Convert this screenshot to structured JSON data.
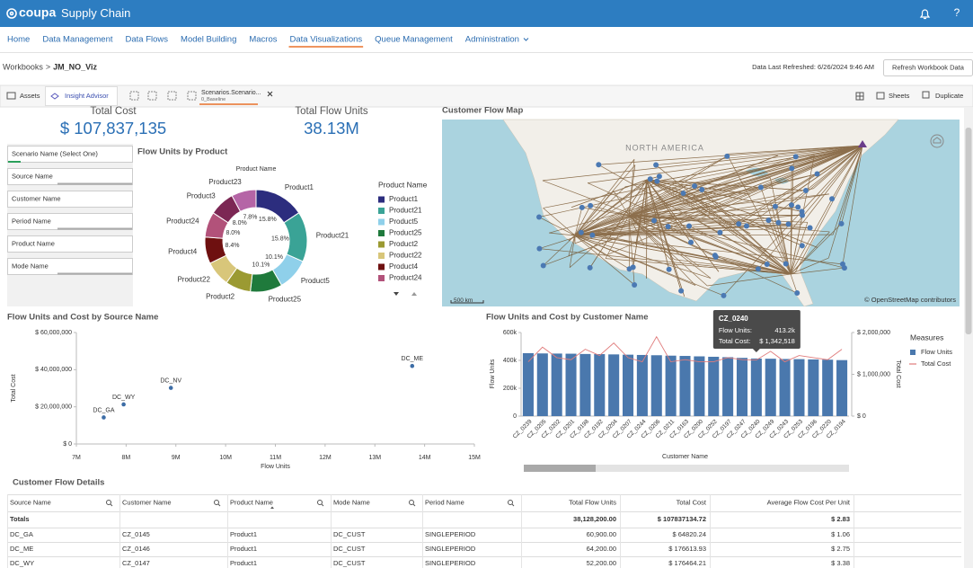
{
  "header": {
    "brand": "coupa",
    "app": "Supply Chain",
    "help": "?"
  },
  "nav": {
    "items": [
      "Home",
      "Data Management",
      "Data Flows",
      "Model Building",
      "Macros",
      "Data Visualizations",
      "Queue Management",
      "Administration"
    ],
    "active": 5
  },
  "breadcrumb": {
    "root": "Workbooks",
    "separator": ">",
    "current": "JM_NO_Viz"
  },
  "refresh": {
    "label": "Data Last Refreshed: 6/26/2024 9:46 AM",
    "button": "Refresh Workbook Data"
  },
  "toolbar": {
    "assets": "Assets",
    "insight": "Insight Advisor",
    "tab_title": "Scenarios.Scenario...",
    "tab_subtitle": "0_Baseline",
    "sheets": "Sheets",
    "duplicate": "Duplicate"
  },
  "kpis": [
    {
      "label": "Total Cost",
      "value": "$ 107,837,135"
    },
    {
      "label": "Total Flow Units",
      "value": "38.13M"
    }
  ],
  "filters": [
    "Scenario Name (Select One)",
    "Source Name",
    "Customer Name",
    "Period Name",
    "Product Name",
    "Mode Name"
  ],
  "donut": {
    "type": "pie",
    "title": "Flow Units by Product",
    "dimension": "Product Name",
    "categories": [
      "Product1",
      "Product21",
      "Product5",
      "Product25",
      "Product2",
      "Product22",
      "Product4",
      "Product24",
      "Product3",
      "Product23"
    ],
    "values": [
      15.8,
      15.8,
      10.1,
      10.1,
      8.0,
      8.0,
      8.4,
      8.0,
      8.0,
      7.8
    ],
    "value_labels": [
      "15.8%",
      "15.8%",
      "10.1%",
      "10.1%",
      null,
      null,
      "8.4%",
      "8.0%",
      "8.0%",
      "7.8%"
    ],
    "colors": [
      "#2c2d7e",
      "#3aa396",
      "#8fd0ea",
      "#1f7a3c",
      "#9b9a32",
      "#d8c67a",
      "#6e1010",
      "#b2527a",
      "#7c2754",
      "#b565a6"
    ],
    "legend_title": "Product Name"
  },
  "map": {
    "title": "Customer Flow Map",
    "region_label": "NORTH AMERICA",
    "scale_label": "500 km",
    "attribution": "© OpenStreetMap contributors"
  },
  "scatter": {
    "type": "scatter",
    "title": "Flow Units and Cost by Source Name",
    "x_label": "Flow Units",
    "y_label": "Total Cost",
    "labels": [
      "DC_GA",
      "DC_WY",
      "DC_NV",
      "DC_ME"
    ],
    "x": [
      7550000,
      7950000,
      8900000,
      13750000
    ],
    "values": [
      14300000,
      21300000,
      30200000,
      42000000
    ],
    "color": "#3d6da6",
    "xlim": [
      7000000,
      15000000
    ],
    "xticks": [
      {
        "value": 7000000,
        "label": "7M"
      },
      {
        "value": 8000000,
        "label": "8M"
      },
      {
        "value": 9000000,
        "label": "9M"
      },
      {
        "value": 10000000,
        "label": "10M"
      },
      {
        "value": 11000000,
        "label": "11M"
      },
      {
        "value": 12000000,
        "label": "12M"
      },
      {
        "value": 13000000,
        "label": "13M"
      },
      {
        "value": 14000000,
        "label": "14M"
      },
      {
        "value": 15000000,
        "label": "15M"
      }
    ],
    "ylim": [
      0,
      60000000
    ],
    "yticks": [
      {
        "value": 0,
        "label": "$ 0"
      },
      {
        "value": 20000000,
        "label": "$ 20,000,000"
      },
      {
        "value": 40000000,
        "label": "$ 40,000,000"
      },
      {
        "value": 60000000,
        "label": "$ 60,000,000"
      }
    ]
  },
  "combo": {
    "type": "bar-line",
    "title": "Flow Units and Cost by Customer Name",
    "x_label": "Customer Name",
    "y_label": "Flow Units",
    "y2_label": "Total Cost",
    "legend_title": "Measures",
    "categories": [
      "CZ_0239",
      "CZ_0205",
      "CZ_0202",
      "CZ_0201",
      "CZ_0198",
      "CZ_0192",
      "CZ_0204",
      "CZ_0207",
      "CZ_0244",
      "CZ_0206",
      "CZ_0211",
      "CZ_0163",
      "CZ_0200",
      "CZ_0252",
      "CZ_0197",
      "CZ_0247",
      "CZ_0240",
      "CZ_0249",
      "CZ_0243",
      "CZ_0253",
      "CZ_0196",
      "CZ_0220",
      "CZ_0194"
    ],
    "series": [
      {
        "name": "Flow Units",
        "color": "#4a78ad",
        "values": [
          452000,
          450000,
          449000,
          448000,
          446000,
          445000,
          443000,
          441000,
          439000,
          437000,
          434000,
          432000,
          429000,
          426000,
          423000,
          418000,
          413200,
          412000,
          410000,
          409000,
          407000,
          405000,
          402000
        ]
      },
      {
        "name": "Total Cost",
        "color": "#e07c7c",
        "axis": "y2",
        "values": [
          1300000,
          1650000,
          1400000,
          1350000,
          1600000,
          1450000,
          1750000,
          1400000,
          1300000,
          1900000,
          1300000,
          1350000,
          1300000,
          1300000,
          1400000,
          1350000,
          1342518,
          1550000,
          1300000,
          1450000,
          1400000,
          1350000,
          1600000
        ]
      }
    ],
    "ylim": [
      0,
      600000
    ],
    "yticks": [
      0,
      {
        "value": 200000,
        "label": "200k"
      },
      {
        "value": 400000,
        "label": "400k"
      },
      {
        "value": 600000,
        "label": "600k"
      }
    ],
    "y2lim": [
      0,
      2000000
    ],
    "y2ticks": [
      {
        "value": 0,
        "label": "$ 0"
      },
      {
        "value": 1000000,
        "label": "$ 1,000,000"
      },
      {
        "value": 2000000,
        "label": "$ 2,000,000"
      }
    ],
    "tooltip": {
      "category": "CZ_0240",
      "rows": [
        {
          "label": "Flow Units:",
          "value": "413.2k"
        },
        {
          "label": "Total Cost:",
          "value": "$ 1,342,518"
        }
      ]
    }
  },
  "table": {
    "title": "Customer Flow Details",
    "headers": [
      "Source Name",
      "Customer Name",
      "Product Name",
      "Mode Name",
      "Period Name",
      "Total Flow Units",
      "Total Cost",
      "Average Flow Cost Per Unit"
    ],
    "totals": {
      "label": "Totals",
      "flow_units": "38,128,200.00",
      "cost": "$ 107837134.72",
      "average": "$ 2.83"
    },
    "rows": [
      [
        "DC_GA",
        "CZ_0145",
        "Product1",
        "DC_CUST",
        "SINGLEPERIOD",
        "60,900.00",
        "$ 64820.24",
        "$ 1.06"
      ],
      [
        "DC_ME",
        "CZ_0146",
        "Product1",
        "DC_CUST",
        "SINGLEPERIOD",
        "64,200.00",
        "$ 176613.93",
        "$ 2.75"
      ],
      [
        "DC_WY",
        "CZ_0147",
        "Product1",
        "DC_CUST",
        "SINGLEPERIOD",
        "52,200.00",
        "$ 176464.21",
        "$ 3.38"
      ]
    ]
  }
}
